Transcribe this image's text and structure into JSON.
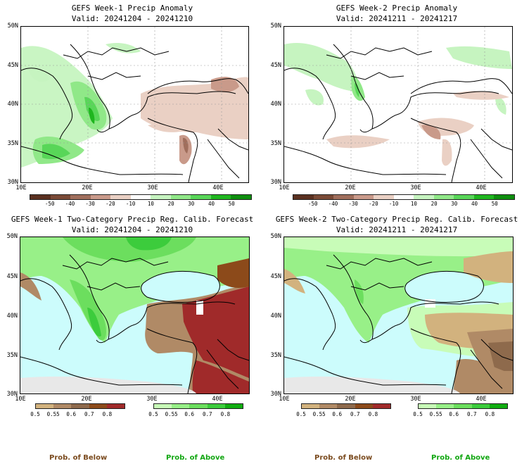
{
  "panels": [
    {
      "title": "GEFS Week-1 Precip Anomaly",
      "valid": "Valid: 20241204 - 20241210"
    },
    {
      "title": "GEFS Week-2 Precip Anomaly",
      "valid": "Valid: 20241211 - 20241217"
    },
    {
      "title": "GEFS Week-1 Two-Category Precip Reg. Calib. Forecast",
      "valid": "Valid: 20241204 - 20241210"
    },
    {
      "title": "GEFS Week-2 Two-Category Precip Reg. Calib. Forecast",
      "valid": "Valid: 20241211 - 20241217"
    }
  ],
  "axes": {
    "lat_labels": [
      "50N",
      "45N",
      "40N",
      "35N",
      "30N"
    ],
    "lon_labels": [
      "10E",
      "20E",
      "30E",
      "40E"
    ]
  },
  "anomaly_colorbar": {
    "ticks": [
      "-50",
      "-40",
      "-30",
      "-20",
      "-10",
      "10",
      "20",
      "30",
      "40",
      "50"
    ],
    "colors": [
      "#5a3020",
      "#7a4a36",
      "#a06e5c",
      "#c99a8a",
      "#ead0c4",
      "#ffffff",
      "#c6f4c0",
      "#90e888",
      "#58d658",
      "#1fb61f",
      "#0e8e0e"
    ]
  },
  "prob_below_colorbar": {
    "ticks": [
      "0.5",
      "0.55",
      "0.6",
      "0.7",
      "0.8"
    ],
    "colors": [
      "#d2b27e",
      "#b08a66",
      "#8e6a4c",
      "#8c4a1a",
      "#a02a2a"
    ]
  },
  "prob_above_colorbar": {
    "ticks": [
      "0.5",
      "0.55",
      "0.6",
      "0.7",
      "0.8"
    ],
    "colors": [
      "#c8fcb8",
      "#98f088",
      "#6cde5e",
      "#3ccc3c",
      "#10ac10"
    ]
  },
  "footer": {
    "below_label": "Prob. of Below",
    "above_label": "Prob. of Above",
    "below_color": "#7a4a1e",
    "above_color": "#11a611"
  }
}
